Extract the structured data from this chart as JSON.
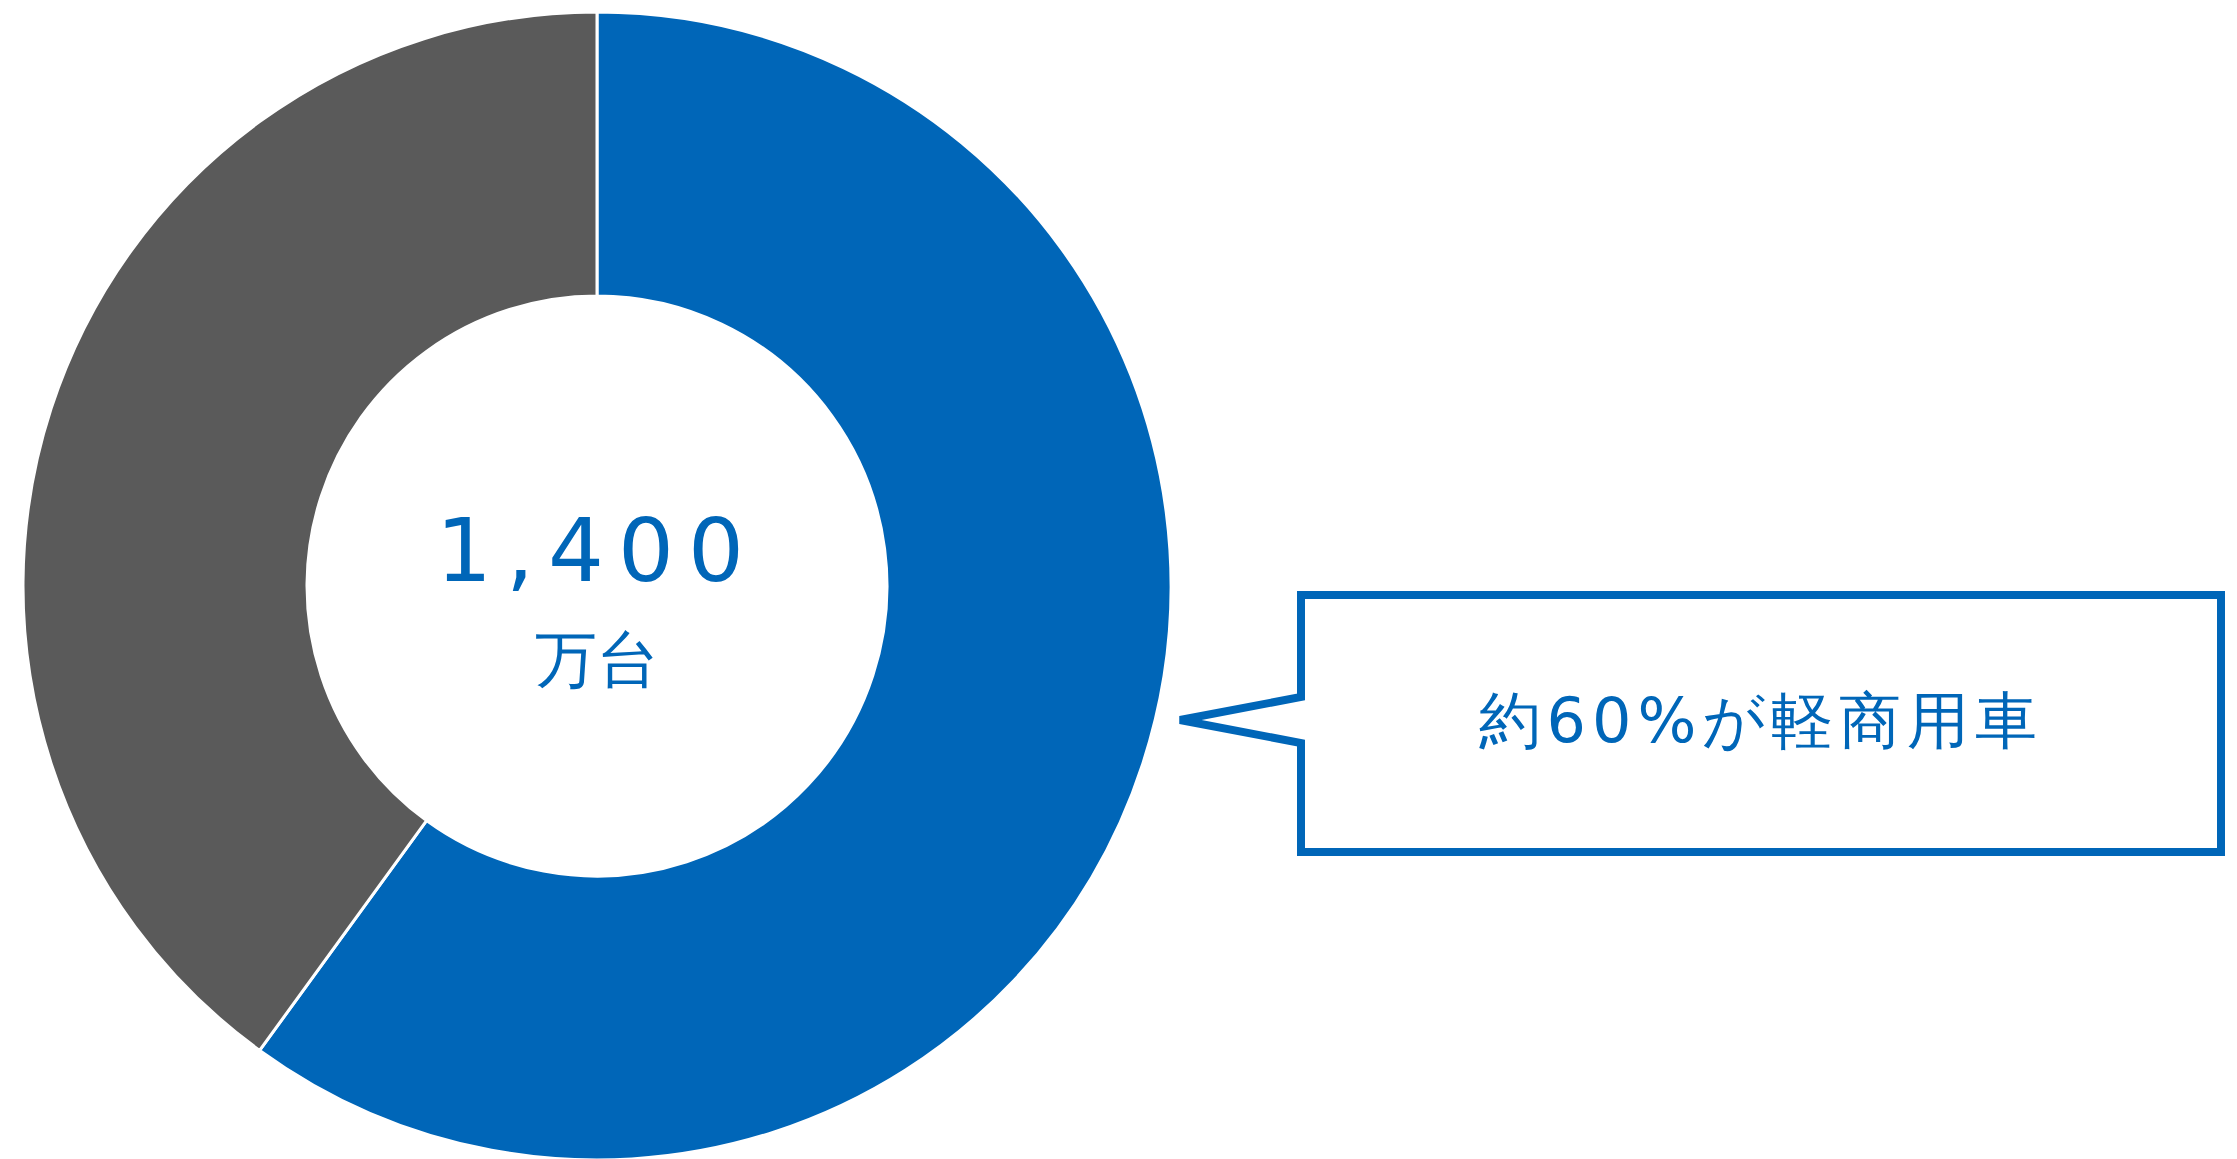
{
  "chart_data": {
    "type": "donut",
    "categories": [
      null,
      null
    ],
    "values": [
      60,
      40
    ],
    "colors": [
      "#0066b8",
      "#5a5a5a"
    ],
    "annotations": [
      "1,400",
      "万台",
      "約60%が軽商用車"
    ]
  }
}
